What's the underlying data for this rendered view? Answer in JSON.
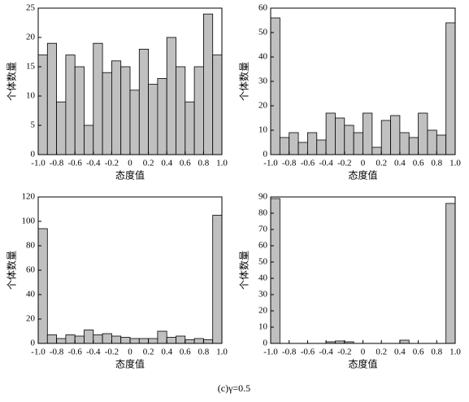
{
  "chart_data": [
    {
      "type": "histogram",
      "ylabel": "个体数量",
      "xlabel": "态度值",
      "color": "#c0c0c0",
      "bins": [
        -1.0,
        -0.9,
        -0.8,
        -0.7,
        -0.6,
        -0.5,
        -0.4,
        -0.3,
        -0.2,
        -0.1,
        0,
        0.1,
        0.2,
        0.3,
        0.4,
        0.5,
        0.6,
        0.7,
        0.8,
        0.9,
        1.0
      ],
      "values": [
        17,
        19,
        9,
        17,
        15,
        5,
        19,
        14,
        16,
        15,
        11,
        18,
        12,
        13,
        20,
        15,
        9,
        15,
        24,
        17
      ],
      "xlim": [
        -1.0,
        1.0
      ],
      "ylim": [
        0,
        25
      ],
      "xticks": [
        {
          "value": -1.0,
          "label": "-1.0"
        },
        -0.8,
        -0.6,
        -0.4,
        -0.2,
        0,
        0.2,
        0.4,
        0.6,
        0.8,
        {
          "value": 1.0,
          "label": "1.0"
        }
      ],
      "yticks": [
        0,
        5,
        10,
        15,
        20,
        25
      ]
    },
    {
      "type": "histogram",
      "ylabel": "个体数量",
      "xlabel": "态度值",
      "color": "#c0c0c0",
      "bins": [
        -1.0,
        -0.9,
        -0.8,
        -0.7,
        -0.6,
        -0.5,
        -0.4,
        -0.3,
        -0.2,
        -0.1,
        0,
        0.1,
        0.2,
        0.3,
        0.4,
        0.5,
        0.6,
        0.7,
        0.8,
        0.9,
        1.0
      ],
      "values": [
        56,
        7,
        9,
        5,
        9,
        6,
        17,
        15,
        12,
        9,
        17,
        3,
        14,
        16,
        9,
        7,
        17,
        10,
        8,
        54
      ],
      "xlim": [
        -1.0,
        1.0
      ],
      "ylim": [
        0,
        60
      ],
      "xticks": [
        {
          "value": -1.0,
          "label": "-1.0"
        },
        -0.8,
        -0.6,
        -0.4,
        -0.2,
        0,
        0.2,
        0.4,
        0.6,
        0.8,
        {
          "value": 1.0,
          "label": "1.0"
        }
      ],
      "yticks": [
        0,
        10,
        20,
        30,
        40,
        50,
        60
      ]
    },
    {
      "type": "histogram",
      "ylabel": "个体数量",
      "xlabel": "态度值",
      "color": "#c0c0c0",
      "bins": [
        -1.0,
        -0.9,
        -0.8,
        -0.7,
        -0.6,
        -0.5,
        -0.4,
        -0.3,
        -0.2,
        -0.1,
        0,
        0.1,
        0.2,
        0.3,
        0.4,
        0.5,
        0.6,
        0.7,
        0.8,
        0.9,
        1.0
      ],
      "values": [
        94,
        7,
        4,
        7,
        6,
        11,
        7,
        8,
        6,
        5,
        4,
        4,
        4,
        10,
        5,
        6,
        3,
        4,
        3,
        105
      ],
      "xlim": [
        -1.0,
        1.0
      ],
      "ylim": [
        0,
        120
      ],
      "xticks": [
        {
          "value": -1.0,
          "label": "-1.0"
        },
        -0.8,
        -0.6,
        -0.4,
        -0.2,
        0,
        0.2,
        0.4,
        0.6,
        0.8,
        {
          "value": 1.0,
          "label": "1.0"
        }
      ],
      "yticks": [
        0,
        20,
        40,
        60,
        80,
        100,
        120
      ]
    },
    {
      "type": "histogram",
      "ylabel": "个体数量",
      "xlabel": "态度值",
      "color": "#c0c0c0",
      "bins": [
        -1.0,
        -0.9,
        -0.8,
        -0.7,
        -0.6,
        -0.5,
        -0.4,
        -0.3,
        -0.2,
        -0.1,
        0,
        0.1,
        0.2,
        0.3,
        0.4,
        0.5,
        0.6,
        0.7,
        0.8,
        0.9,
        1.0
      ],
      "values": [
        89,
        0,
        0,
        0,
        0,
        0,
        1,
        1.5,
        1,
        0,
        0,
        0,
        0,
        0,
        2,
        0,
        0,
        0,
        0,
        86
      ],
      "xlim": [
        -1.0,
        1.0
      ],
      "ylim": [
        0,
        90
      ],
      "xticks": [
        {
          "value": -1.0,
          "label": "-1.0"
        },
        -0.8,
        -0.6,
        -0.4,
        -0.2,
        0,
        0.2,
        0.4,
        0.6,
        0.8,
        {
          "value": 1.0,
          "label": "1.0"
        }
      ],
      "yticks": [
        0,
        10,
        20,
        30,
        40,
        50,
        60,
        70,
        80,
        90
      ]
    }
  ],
  "caption": "(c)γ=0.5"
}
